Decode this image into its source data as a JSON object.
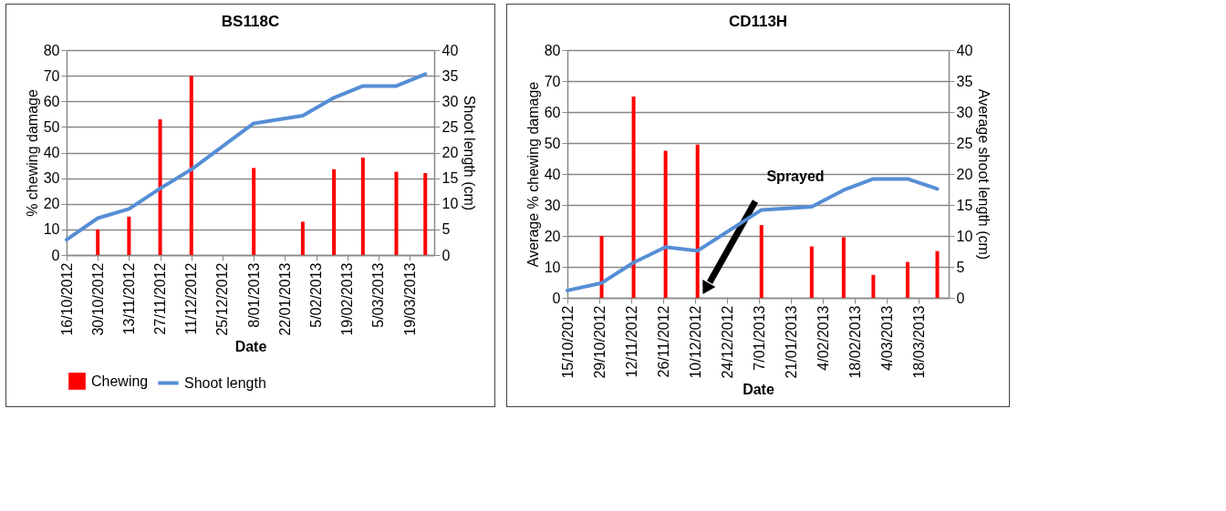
{
  "chart_data": [
    {
      "type": "bar",
      "title": "BS118C",
      "xlabel": "Date",
      "ylabel": "% chewing damage",
      "y2label": "Shoot length (cm)",
      "xlim": [
        "2012-10-16",
        "2013-03-30"
      ],
      "xticks": [
        {
          "value": "2012-10-16",
          "label": "16/10/2012"
        },
        {
          "value": "2012-10-30",
          "label": "30/10/2012"
        },
        {
          "value": "2012-11-13",
          "label": "13/11/2012"
        },
        {
          "value": "2012-11-27",
          "label": "27/11/2012"
        },
        {
          "value": "2012-12-11",
          "label": "11/12/2012"
        },
        {
          "value": "2012-12-25",
          "label": "25/12/2012"
        },
        {
          "value": "2013-01-08",
          "label": "8/01/2013"
        },
        {
          "value": "2013-01-22",
          "label": "22/01/2013"
        },
        {
          "value": "2013-02-05",
          "label": "5/02/2013"
        },
        {
          "value": "2013-02-19",
          "label": "19/02/2013"
        },
        {
          "value": "2013-03-05",
          "label": "5/03/2013"
        },
        {
          "value": "2013-03-19",
          "label": "19/03/2013"
        }
      ],
      "ylim": [
        0,
        80
      ],
      "yticks": [
        0,
        10,
        20,
        30,
        40,
        50,
        60,
        70,
        80
      ],
      "y2lim": [
        0,
        40
      ],
      "y2ticks": [
        0,
        5,
        10,
        15,
        20,
        25,
        30,
        35,
        40
      ],
      "grid": "y",
      "legend": "bottom",
      "series": [
        {
          "name": "Chewing",
          "color": "#ff0000",
          "x": [
            "2012-10-30",
            "2012-11-13",
            "2012-11-27",
            "2012-12-11",
            "2013-01-08",
            "2013-01-30",
            "2013-02-13",
            "2013-02-26",
            "2013-03-13",
            "2013-03-26"
          ],
          "values": [
            10,
            15,
            53,
            70,
            34,
            13,
            33.5,
            38,
            32.5,
            32
          ]
        },
        {
          "name": "Shoot length",
          "type": "line",
          "axis": "y2",
          "color": "#558ed5",
          "x": [
            "2012-10-16",
            "2012-10-30",
            "2012-11-13",
            "2012-11-27",
            "2012-12-11",
            "2013-01-08",
            "2013-01-30",
            "2013-02-13",
            "2013-02-26",
            "2013-03-13",
            "2013-03-26"
          ],
          "values": [
            3,
            7.2,
            9,
            13,
            16.7,
            25.7,
            27.2,
            30.7,
            33,
            33,
            35.3
          ]
        }
      ]
    },
    {
      "type": "bar",
      "title": "CD113H",
      "xlabel": "Date",
      "ylabel": "Average % chewing damage",
      "y2label": "Average shoot length (cm)",
      "xlim": [
        "2012-10-15",
        "2013-03-31"
      ],
      "xticks": [
        {
          "value": "2012-10-15",
          "label": "15/10/2012"
        },
        {
          "value": "2012-10-29",
          "label": "29/10/2012"
        },
        {
          "value": "2012-11-12",
          "label": "12/11/2012"
        },
        {
          "value": "2012-11-26",
          "label": "26/11/2012"
        },
        {
          "value": "2012-12-10",
          "label": "10/12/2012"
        },
        {
          "value": "2012-12-24",
          "label": "24/12/2012"
        },
        {
          "value": "2013-01-07",
          "label": "7/01/2013"
        },
        {
          "value": "2013-01-21",
          "label": "21/01/2013"
        },
        {
          "value": "2013-02-04",
          "label": "4/02/2013"
        },
        {
          "value": "2013-02-18",
          "label": "18/02/2013"
        },
        {
          "value": "2013-03-04",
          "label": "4/03/2013"
        },
        {
          "value": "2013-03-18",
          "label": "18/03/2013"
        }
      ],
      "ylim": [
        0,
        80
      ],
      "yticks": [
        0,
        10,
        20,
        30,
        40,
        50,
        60,
        70,
        80
      ],
      "y2lim": [
        0,
        40
      ],
      "y2ticks": [
        0,
        5,
        10,
        15,
        20,
        25,
        30,
        35,
        40
      ],
      "grid": "y",
      "annotations": [
        "Sprayed"
      ],
      "series": [
        {
          "color": "#ff0000",
          "x": [
            "2012-10-30",
            "2012-11-13",
            "2012-11-27",
            "2012-12-11",
            "2013-01-08",
            "2013-01-30",
            "2013-02-13",
            "2013-02-26",
            "2013-03-13",
            "2013-03-26"
          ],
          "values": [
            20,
            65,
            47.5,
            49.5,
            23.5,
            16.6,
            19.6,
            7.4,
            11.6,
            15.1
          ]
        },
        {
          "type": "line",
          "axis": "y2",
          "color": "#558ed5",
          "x": [
            "2012-10-15",
            "2012-10-30",
            "2012-11-13",
            "2012-11-27",
            "2012-12-11",
            "2013-01-08",
            "2013-01-30",
            "2013-02-13",
            "2013-02-26",
            "2013-03-13",
            "2013-03-26"
          ],
          "values": [
            1.2,
            2.4,
            5.7,
            8.2,
            7.6,
            14.2,
            14.7,
            17.4,
            19.2,
            19.2,
            17.6
          ]
        }
      ]
    }
  ]
}
